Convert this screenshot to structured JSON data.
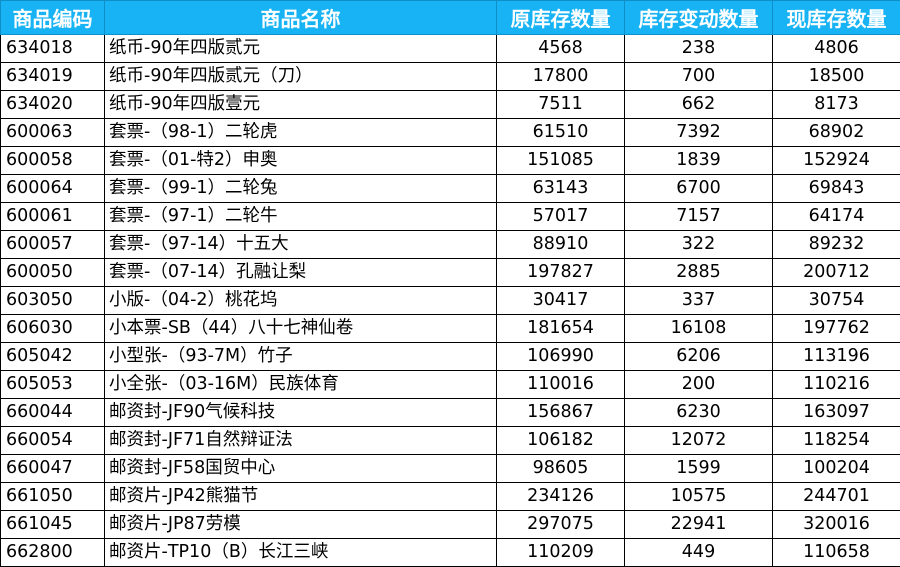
{
  "table": {
    "headers": [
      "商品编码",
      "商品名称",
      "原库存数量",
      "库存变动数量",
      "现库存数量"
    ],
    "rows": [
      [
        "634018",
        "纸币-90年四版贰元",
        "4568",
        "238",
        "4806"
      ],
      [
        "634019",
        "纸币-90年四版贰元（刀）",
        "17800",
        "700",
        "18500"
      ],
      [
        "634020",
        "纸币-90年四版壹元",
        "7511",
        "662",
        "8173"
      ],
      [
        "600063",
        "套票-（98-1）二轮虎",
        "61510",
        "7392",
        "68902"
      ],
      [
        "600058",
        "套票-（01-特2）申奥",
        "151085",
        "1839",
        "152924"
      ],
      [
        "600064",
        "套票-（99-1）二轮兔",
        "63143",
        "6700",
        "69843"
      ],
      [
        "600061",
        "套票-（97-1）二轮牛",
        "57017",
        "7157",
        "64174"
      ],
      [
        "600057",
        "套票-（97-14）十五大",
        "88910",
        "322",
        "89232"
      ],
      [
        "600050",
        "套票-（07-14）孔融让梨",
        "197827",
        "2885",
        "200712"
      ],
      [
        "603050",
        "小版-（04-2）桃花坞",
        "30417",
        "337",
        "30754"
      ],
      [
        "606030",
        "小本票-SB（44）八十七神仙卷",
        "181654",
        "16108",
        "197762"
      ],
      [
        "605042",
        "小型张-（93-7M）竹子",
        "106990",
        "6206",
        "113196"
      ],
      [
        "605053",
        "小全张-（03-16M）民族体育",
        "110016",
        "200",
        "110216"
      ],
      [
        "660044",
        "邮资封-JF90气候科技",
        "156867",
        "6230",
        "163097"
      ],
      [
        "660054",
        "邮资封-JF71自然辩证法",
        "106182",
        "12072",
        "118254"
      ],
      [
        "660047",
        "邮资封-JF58国贸中心",
        "98605",
        "1599",
        "100204"
      ],
      [
        "661050",
        "邮资片-JP42熊猫节",
        "234126",
        "10575",
        "244701"
      ],
      [
        "661045",
        "邮资片-JP87劳模",
        "297075",
        "22941",
        "320016"
      ],
      [
        "662800",
        "邮资片-TP10（B）长江三峡",
        "110209",
        "449",
        "110658"
      ]
    ]
  },
  "colors": {
    "header_bg": "#18b3f4",
    "header_text": "#ffffff",
    "grid": "#000000"
  }
}
